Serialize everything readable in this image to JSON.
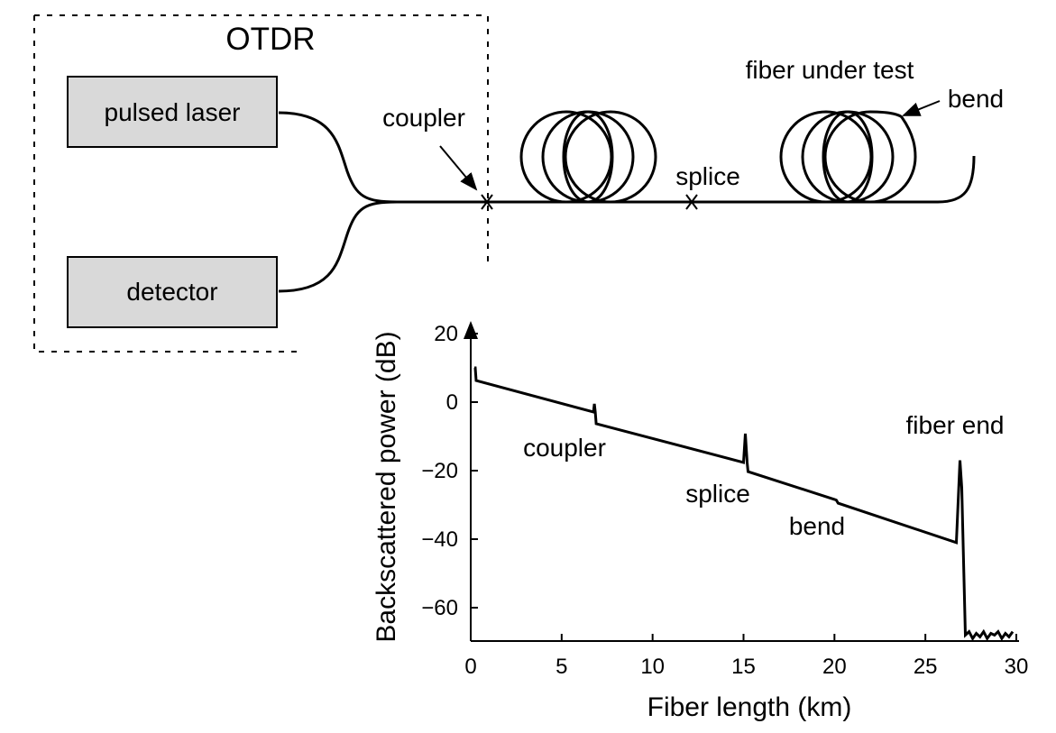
{
  "diagram": {
    "otdr_label": "OTDR",
    "pulsed_laser_label": "pulsed laser",
    "detector_label": "detector",
    "coupler_label": "coupler",
    "splice_label": "splice",
    "fiber_under_test_label": "fiber under test",
    "bend_label": "bend",
    "box_fill": "#d9d9d9"
  },
  "chart_data": {
    "type": "line",
    "xlabel": "Fiber length (km)",
    "ylabel": "Backscattered power (dB)",
    "xlim": [
      0,
      30
    ],
    "ylim": [
      -70,
      20
    ],
    "xticks": [
      "0",
      "5",
      "10",
      "15",
      "20",
      "25",
      "30"
    ],
    "yticks": [
      "20",
      "0",
      "−20",
      "−40",
      "−60"
    ],
    "ytick_values": [
      20,
      0,
      -20,
      -40,
      -60
    ],
    "xtick_values": [
      0,
      5,
      10,
      15,
      20,
      25,
      30
    ],
    "grid": false,
    "series": [
      {
        "x": [
          0.2,
          0.25,
          0.3,
          6.75,
          6.8,
          6.85,
          6.9,
          15.0,
          15.1,
          15.2,
          15.25,
          20.0,
          20.1,
          20.2,
          26.7,
          26.9,
          27.0,
          27.2,
          27.4,
          27.6,
          27.8,
          28.0,
          28.2,
          28.4,
          28.6,
          28.8,
          29.0,
          29.2,
          29.4,
          29.6,
          29.8
        ],
        "y": [
          10,
          10,
          6.3,
          -2.9,
          -0.5,
          -2.9,
          -6.3,
          -17.6,
          -9.2,
          -17.6,
          -20.3,
          -28.4,
          -28.6,
          -29.5,
          -41,
          -17,
          -25,
          -68,
          -67,
          -69,
          -67.5,
          -68.5,
          -67,
          -69,
          -67.5,
          -68,
          -67,
          -69,
          -67.5,
          -68.5,
          -67
        ]
      }
    ],
    "annotations": [
      {
        "text": "coupler",
        "x": 6.8
      },
      {
        "text": "splice",
        "x": 15.1
      },
      {
        "text": "bend",
        "x": 20.1
      },
      {
        "text": "fiber end",
        "x": 26.9
      }
    ]
  }
}
